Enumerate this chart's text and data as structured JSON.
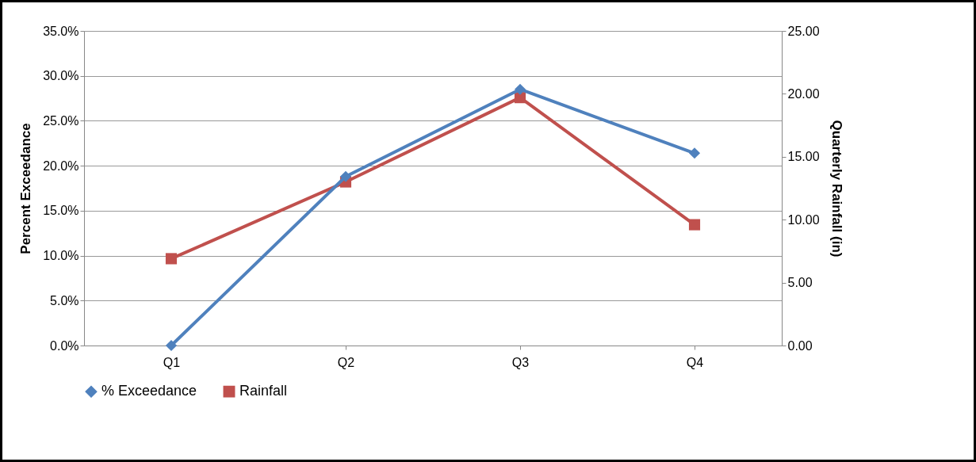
{
  "chart_data": {
    "type": "line",
    "categories": [
      "Q1",
      "Q2",
      "Q3",
      "Q4"
    ],
    "ylabel": "Percent Exceedance",
    "y2label": "Quarterly Rainfall (in)",
    "ylim": [
      0,
      35
    ],
    "yticks": [
      {
        "value": 0,
        "label": "0.0%"
      },
      {
        "value": 5,
        "label": "5.0%"
      },
      {
        "value": 10,
        "label": "10.0%"
      },
      {
        "value": 15,
        "label": "15.0%"
      },
      {
        "value": 20,
        "label": "20.0%"
      },
      {
        "value": 25,
        "label": "25.0%"
      },
      {
        "value": 30,
        "label": "30.0%"
      },
      {
        "value": 35,
        "label": "35.0%"
      }
    ],
    "y2lim": [
      0,
      25
    ],
    "y2ticks": [
      {
        "value": 0,
        "label": "0.00"
      },
      {
        "value": 5,
        "label": "5.00"
      },
      {
        "value": 10,
        "label": "10.00"
      },
      {
        "value": 15,
        "label": "15.00"
      },
      {
        "value": 20,
        "label": "20.00"
      },
      {
        "value": 25,
        "label": "25.00"
      }
    ],
    "grid": "y",
    "legend": "bottom",
    "line_style": "solid",
    "series": [
      {
        "name": "% Exceedance",
        "color": "#4f81bd",
        "marker": "diamond",
        "values": [
          0,
          18.8,
          28.5,
          21.4
        ]
      },
      {
        "name": "Rainfall",
        "color": "#c0504d",
        "marker": "square",
        "axis": "y2",
        "values": [
          6.9,
          13.0,
          19.7,
          9.6
        ]
      }
    ]
  }
}
